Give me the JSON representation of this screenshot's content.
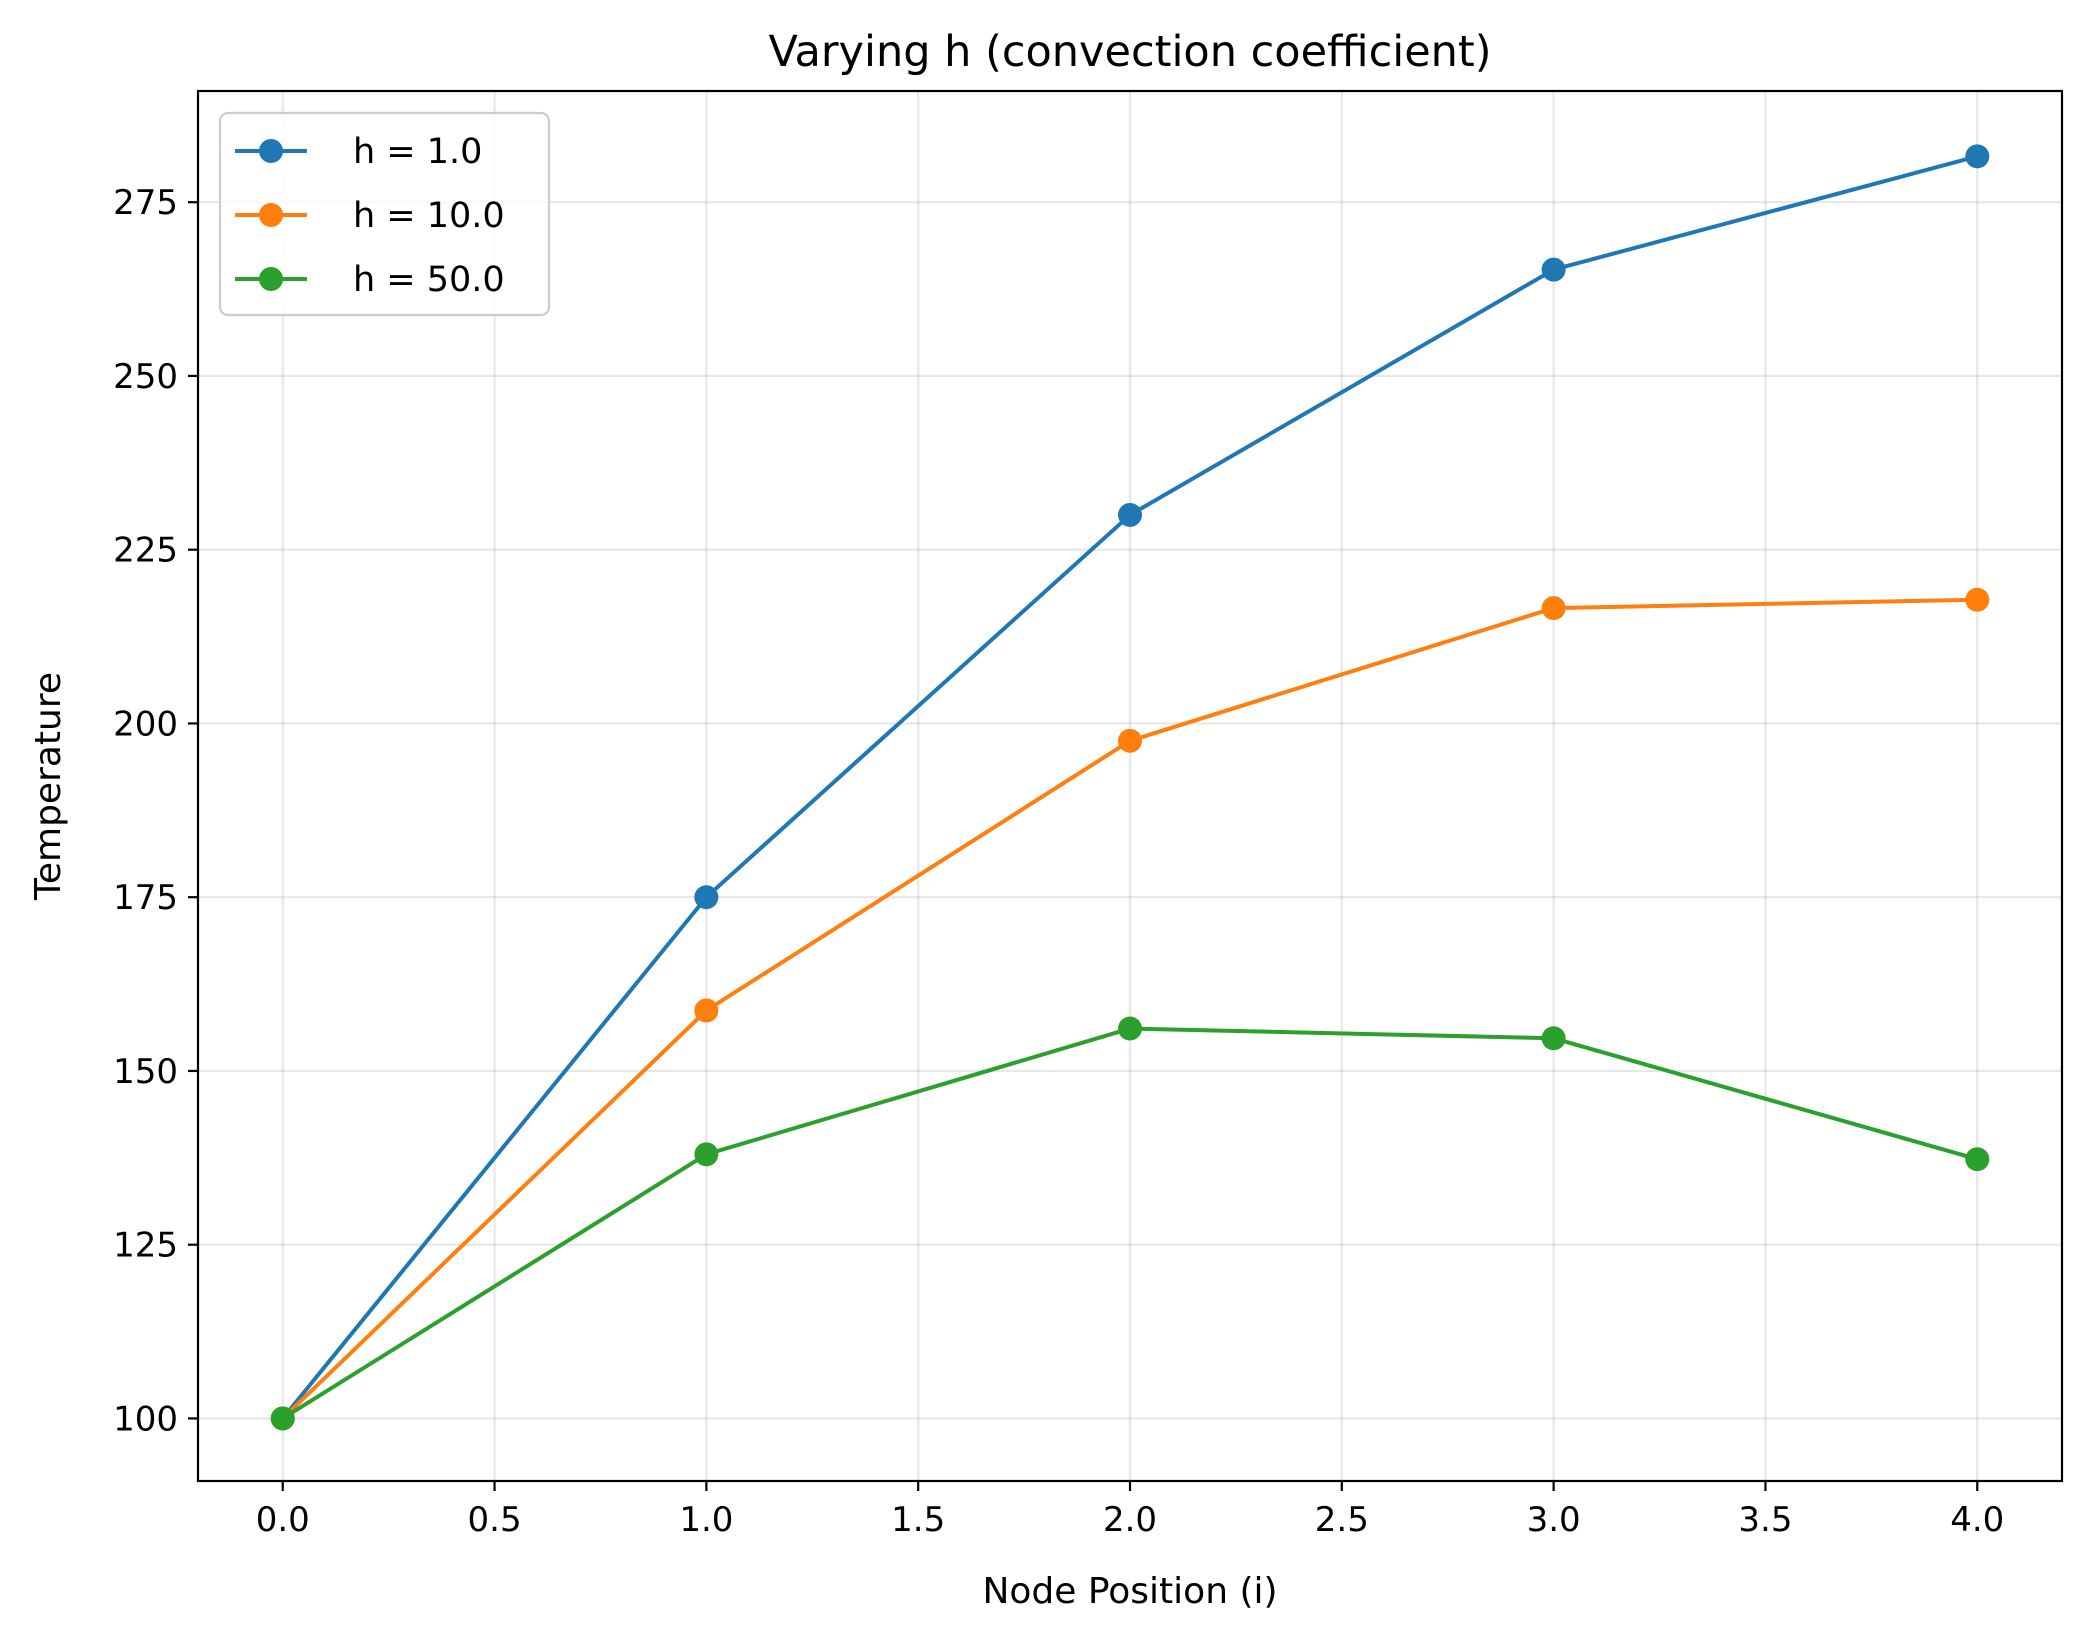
{
  "chart_data": {
    "type": "line",
    "title": "Varying h (convection coefficient)",
    "xlabel": "Node Position (i)",
    "ylabel": "Temperature",
    "xlim": [
      -0.2,
      4.2
    ],
    "ylim": [
      91,
      291
    ],
    "xticks": [
      0.0,
      0.5,
      1.0,
      1.5,
      2.0,
      2.5,
      3.0,
      3.5,
      4.0
    ],
    "xtick_labels": [
      "0.0",
      "0.5",
      "1.0",
      "1.5",
      "2.0",
      "2.5",
      "3.0",
      "3.5",
      "4.0"
    ],
    "yticks": [
      100,
      125,
      150,
      175,
      200,
      225,
      250,
      275
    ],
    "ytick_labels": [
      "100",
      "125",
      "150",
      "175",
      "200",
      "225",
      "250",
      "275"
    ],
    "grid": true,
    "legend_position": "upper-left",
    "x": [
      0,
      1,
      2,
      3,
      4
    ],
    "series": [
      {
        "name": "h = 1.0",
        "color": "#1f77b4",
        "marker": "circle",
        "values": [
          100,
          175,
          230,
          265.3,
          281.6
        ]
      },
      {
        "name": "h = 10.0",
        "color": "#ff7f0e",
        "marker": "circle",
        "values": [
          100,
          158.7,
          197.5,
          216.6,
          217.8
        ]
      },
      {
        "name": "h = 50.0",
        "color": "#2ca02c",
        "marker": "circle",
        "values": [
          100,
          138,
          156.1,
          154.7,
          137.3
        ]
      }
    ]
  }
}
